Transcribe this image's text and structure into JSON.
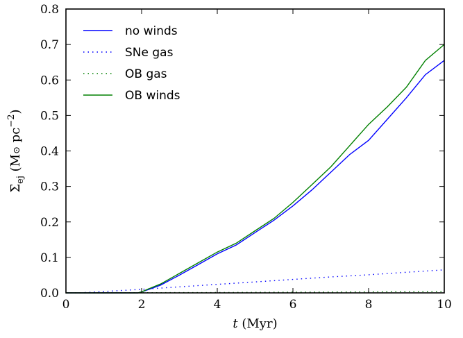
{
  "chart_data": {
    "type": "line",
    "xlabel": "t (Myr)",
    "ylabel": "Σ_ej (M⊙ pc⁻²)",
    "xlim": [
      0,
      10
    ],
    "ylim": [
      0,
      0.8
    ],
    "xticks": [
      0,
      2,
      4,
      6,
      8,
      10
    ],
    "xtick_labels": [
      "0",
      "2",
      "4",
      "6",
      "8",
      "10"
    ],
    "yticks": [
      0.0,
      0.1,
      0.2,
      0.3,
      0.4,
      0.5,
      0.6,
      0.7,
      0.8
    ],
    "ytick_labels": [
      "0.0",
      "0.1",
      "0.2",
      "0.3",
      "0.4",
      "0.5",
      "0.6",
      "0.7",
      "0.8"
    ],
    "grid": false,
    "legend_position": "top-left",
    "series": [
      {
        "name": "no winds",
        "color": "#0000ff",
        "style": "solid",
        "x": [
          0,
          1.9,
          2.0,
          2.2,
          2.5,
          3.0,
          3.5,
          4.0,
          4.5,
          5.0,
          5.5,
          6.0,
          6.5,
          7.0,
          7.5,
          8.0,
          8.5,
          9.0,
          9.5,
          10.0
        ],
        "y": [
          0.0,
          0.0,
          0.003,
          0.01,
          0.022,
          0.05,
          0.08,
          0.11,
          0.135,
          0.17,
          0.205,
          0.245,
          0.29,
          0.34,
          0.39,
          0.43,
          0.49,
          0.55,
          0.615,
          0.655
        ]
      },
      {
        "name": "SNe gas",
        "color": "#0000ff",
        "style": "dotted",
        "x": [
          0.5,
          1.0,
          2.0,
          3.0,
          4.0,
          5.0,
          6.0,
          7.0,
          8.0,
          9.0,
          10.0
        ],
        "y": [
          0.001,
          0.004,
          0.01,
          0.017,
          0.024,
          0.031,
          0.038,
          0.045,
          0.051,
          0.058,
          0.065
        ]
      },
      {
        "name": "OB gas",
        "color": "#008000",
        "style": "dotted",
        "x": [
          0,
          2,
          4,
          6,
          8,
          10
        ],
        "y": [
          0.0,
          0.0005,
          0.001,
          0.002,
          0.003,
          0.004
        ]
      },
      {
        "name": "OB winds",
        "color": "#008000",
        "style": "solid",
        "x": [
          0,
          1.9,
          2.0,
          2.2,
          2.5,
          3.0,
          3.5,
          4.0,
          4.5,
          5.0,
          5.5,
          6.0,
          6.5,
          7.0,
          7.5,
          8.0,
          8.5,
          9.0,
          9.5,
          10.0
        ],
        "y": [
          0.0,
          0.0,
          0.003,
          0.012,
          0.025,
          0.055,
          0.085,
          0.115,
          0.14,
          0.175,
          0.21,
          0.255,
          0.305,
          0.355,
          0.415,
          0.475,
          0.525,
          0.58,
          0.655,
          0.7
        ]
      }
    ]
  }
}
